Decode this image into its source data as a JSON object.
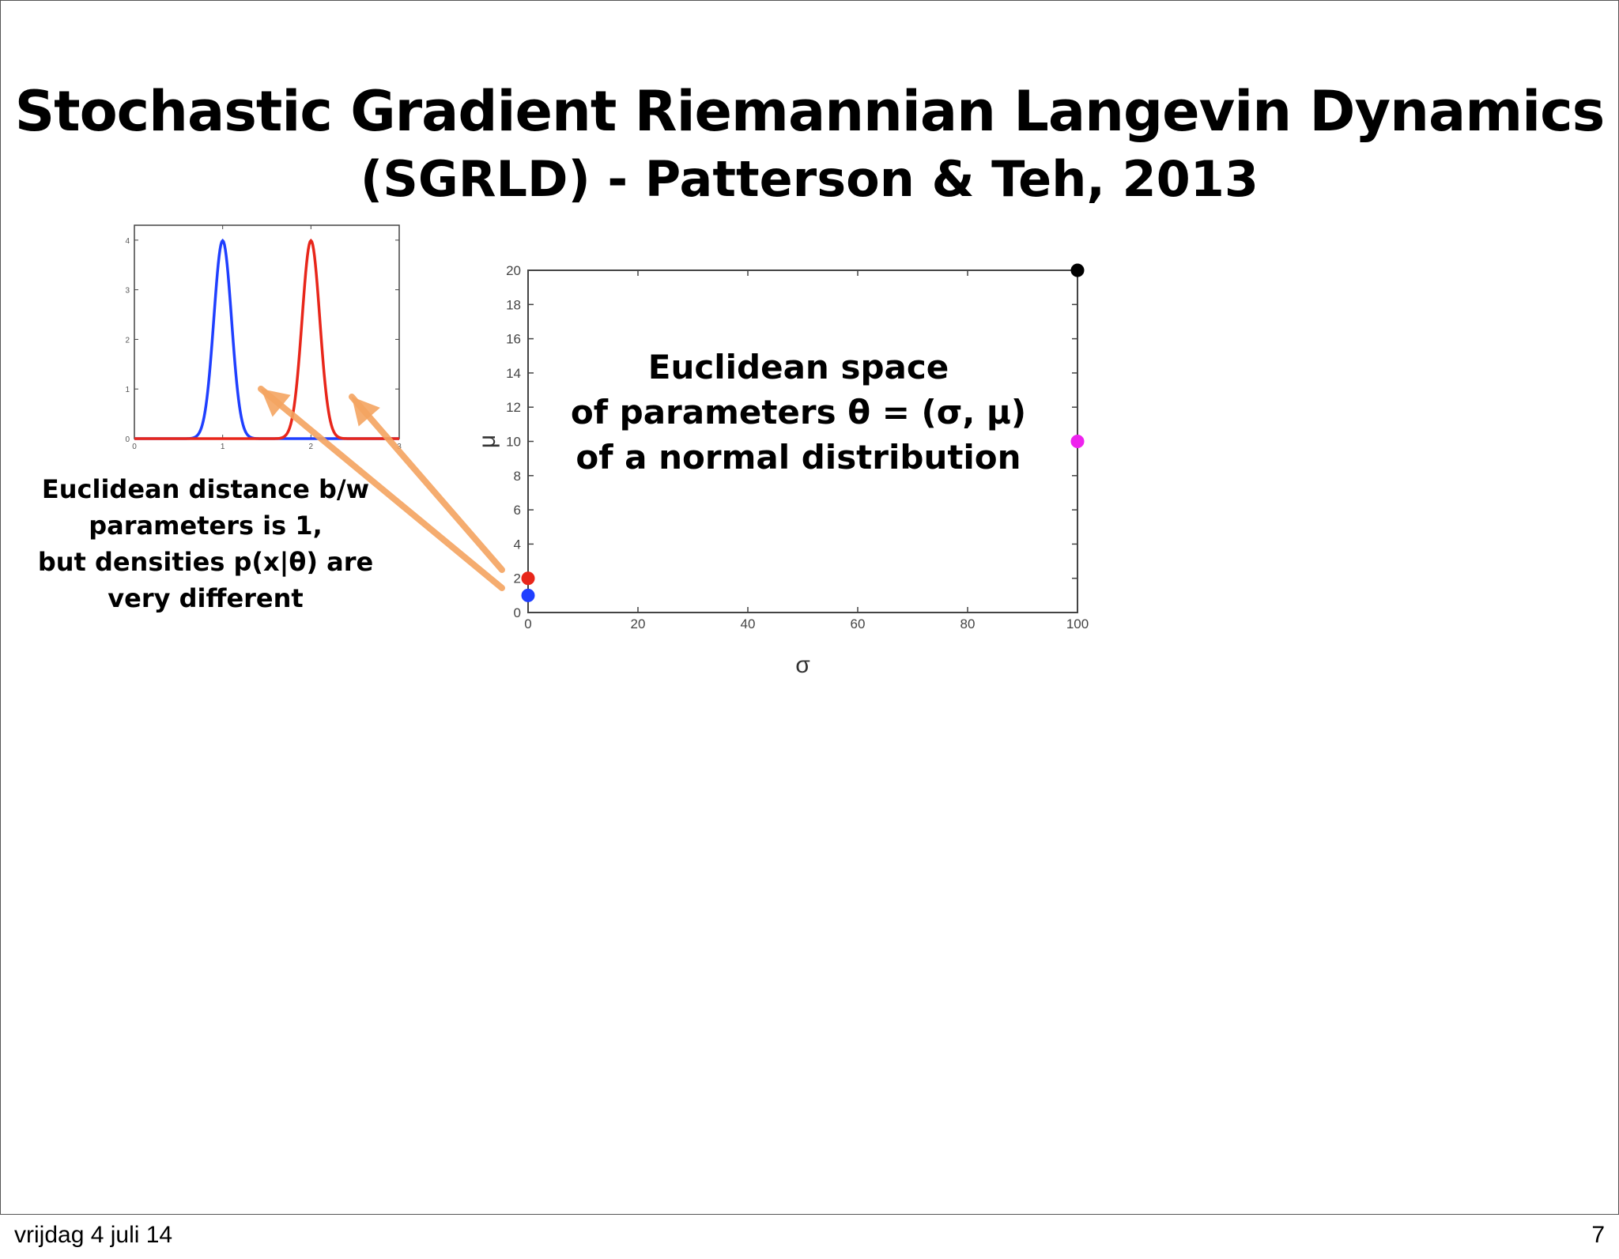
{
  "slide": {
    "title_line1": "Stochastic Gradient Riemannian Langevin Dynamics",
    "title_line2": "(SGRLD) - Patterson & Teh, 2013",
    "caption_left": [
      "Euclidean distance b/w",
      "parameters is 1,",
      "but densities p(x|θ) are",
      "very different"
    ],
    "caption_mid": [
      "Euclidean space",
      "of parameters θ = (σ, μ)",
      "of a normal distribution"
    ],
    "footer_date": "vrijdag 4 juli 14",
    "footer_page": "7",
    "arrow_color": "#f4a460"
  },
  "chart_data": [
    {
      "type": "line",
      "title": "",
      "xlabel": "",
      "ylabel": "",
      "xlim": [
        0,
        3
      ],
      "ylim": [
        0,
        4.3
      ],
      "x_ticks": [
        "0",
        "1",
        "2",
        "3"
      ],
      "y_ticks": [
        "0",
        "1",
        "2",
        "3",
        "4"
      ],
      "series": [
        {
          "color": "#1f3fff",
          "mean": 1,
          "sd": 0.1
        },
        {
          "color": "#e8261a",
          "mean": 2,
          "sd": 0.1
        }
      ]
    },
    {
      "type": "scatter",
      "title": "",
      "xlabel": "σ",
      "ylabel": "μ",
      "xlim": [
        0,
        100
      ],
      "ylim": [
        0,
        20
      ],
      "x_ticks": [
        "0",
        "20",
        "40",
        "60",
        "80",
        "100"
      ],
      "y_ticks": [
        "0",
        "2",
        "4",
        "6",
        "8",
        "10",
        "12",
        "14",
        "16",
        "18",
        "20"
      ],
      "points": [
        {
          "x": 0,
          "y": 2,
          "color": "#e8261a"
        },
        {
          "x": 0,
          "y": 1,
          "color": "#1f3fff"
        },
        {
          "x": 100,
          "y": 20,
          "color": "#000000"
        },
        {
          "x": 100,
          "y": 10,
          "color": "#ee22ee"
        }
      ]
    }
  ]
}
